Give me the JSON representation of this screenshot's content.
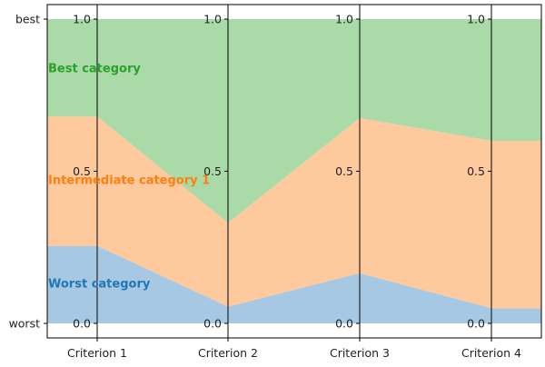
{
  "chart_data": {
    "type": "area",
    "categories": [
      "Criterion 1",
      "Criterion 2",
      "Criterion 3",
      "Criterion 4"
    ],
    "y_labels": {
      "bottom": "worst",
      "top": "best"
    },
    "ylim": [
      0,
      1
    ],
    "axis_ticks": [
      "0.0",
      "0.5",
      "1.0"
    ],
    "bands": [
      {
        "name": "Worst category",
        "color": "#a6c8e3",
        "label_color": "#1f77b4",
        "lower": [
          0.0,
          0.0,
          0.0,
          0.0
        ],
        "upper": [
          0.255,
          0.055,
          0.165,
          0.05
        ]
      },
      {
        "name": "Intermediate category 1",
        "color": "#ffc99e",
        "label_color": "#ff7f0e",
        "lower": [
          0.255,
          0.055,
          0.165,
          0.05
        ],
        "upper": [
          0.68,
          0.33,
          0.675,
          0.6
        ]
      },
      {
        "name": "Best category",
        "color": "#a9daa8",
        "label_color": "#2ca02c",
        "lower": [
          0.68,
          0.33,
          0.675,
          0.6
        ],
        "upper": [
          1.0,
          1.0,
          1.0,
          1.0
        ]
      }
    ],
    "grid": false,
    "legend": "inline-left"
  }
}
